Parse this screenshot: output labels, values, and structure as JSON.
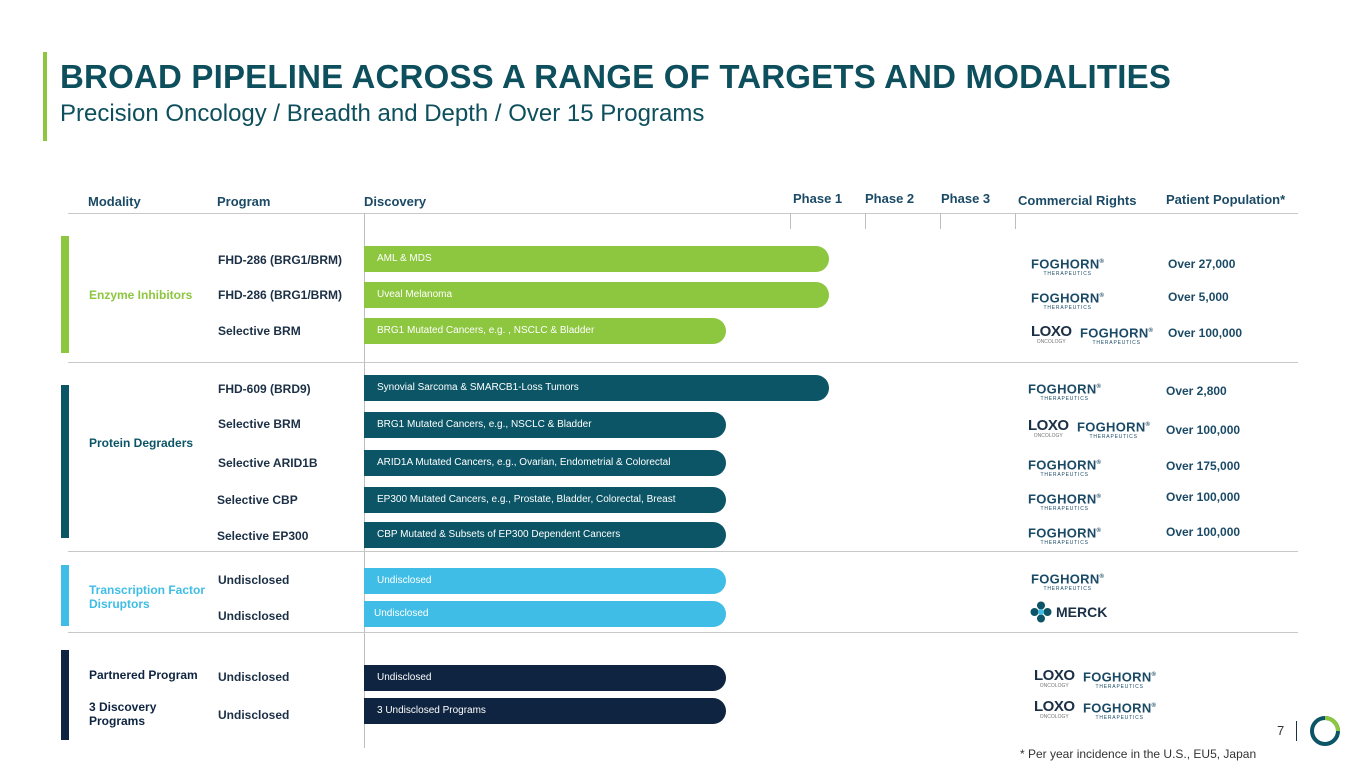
{
  "title": "BROAD PIPELINE ACROSS A RANGE OF TARGETS AND MODALITIES",
  "subtitle": "Precision Oncology / Breadth and Depth / Over 15 Programs",
  "headers": {
    "modality": "Modality",
    "program": "Program",
    "discovery": "Discovery",
    "phase1": "Phase 1",
    "phase2": "Phase 2",
    "phase3": "Phase 3",
    "rights": "Commercial Rights",
    "population": "Patient Population*"
  },
  "colors": {
    "enzyme": "#8dc63f",
    "degrader": "#0b5566",
    "tf": "#3fbde6",
    "partnered": "#0e2440",
    "title": "#0d4f5c"
  },
  "modalities": {
    "enzyme": "Enzyme Inhibitors",
    "degrader": "Protein Degraders",
    "tf": "Transcription Factor Disruptors",
    "partnered": "Partnered Program",
    "discovery": "3 Discovery Programs"
  },
  "rows": [
    {
      "program": "FHD-286 (BRG1/BRM)",
      "indication": "AML & MDS",
      "population": "Over 27,000",
      "rights": "foghorn"
    },
    {
      "program": "FHD-286 (BRG1/BRM)",
      "indication": "Uveal Melanoma",
      "population": "Over 5,000",
      "rights": "foghorn"
    },
    {
      "program": "Selective BRM",
      "indication": "BRG1 Mutated Cancers, e.g. , NSCLC & Bladder",
      "population": "Over 100,000",
      "rights": "loxo-foghorn"
    },
    {
      "program": "FHD-609 (BRD9)",
      "indication": "Synovial Sarcoma & SMARCB1-Loss Tumors",
      "population": "Over 2,800",
      "rights": "foghorn"
    },
    {
      "program": "Selective BRM",
      "indication": "BRG1 Mutated Cancers, e.g., NSCLC & Bladder",
      "population": "Over 100,000",
      "rights": "loxo-foghorn"
    },
    {
      "program": "Selective ARID1B",
      "indication": "ARID1A Mutated Cancers, e.g., Ovarian, Endometrial & Colorectal",
      "population": "Over 175,000",
      "rights": "foghorn"
    },
    {
      "program": "Selective CBP",
      "indication": "EP300 Mutated Cancers, e.g., Prostate, Bladder, Colorectal, Breast",
      "population": "Over 100,000",
      "rights": "foghorn"
    },
    {
      "program": "Selective EP300",
      "indication": "CBP Mutated & Subsets of EP300 Dependent Cancers",
      "population": "Over 100,000",
      "rights": "foghorn"
    },
    {
      "program": "Undisclosed",
      "indication": "Undisclosed",
      "population": "",
      "rights": "foghorn"
    },
    {
      "program": "Undisclosed",
      "indication": "Undisclosed",
      "population": "",
      "rights": "merck"
    },
    {
      "program": "Undisclosed",
      "indication": "Undisclosed",
      "population": "",
      "rights": "loxo-foghorn"
    },
    {
      "program": "Undisclosed",
      "indication": "3 Undisclosed Programs",
      "population": "",
      "rights": "loxo-foghorn"
    }
  ],
  "logos": {
    "foghorn": "FOGHORN",
    "foghorn_tm": "®",
    "foghorn_sub": "THERAPEUTICS",
    "loxo": "LOXO",
    "loxo_sub": "ONCOLOGY",
    "merck": "MERCK"
  },
  "footnote": "* Per year incidence in the U.S., EU5, Japan",
  "page_number": "7"
}
